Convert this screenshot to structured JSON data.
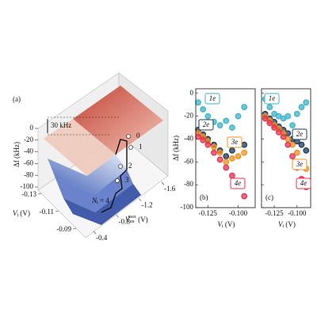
{
  "chart_data": [
    {
      "type": "surface3d",
      "panel_label": "(a)",
      "zlabel": "Δf (kHz)",
      "zticks": [
        0,
        -20,
        -40,
        -60,
        -80,
        -100
      ],
      "xlabel": {
        "symbol": "V",
        "sub": "t",
        "unit": " (V)"
      },
      "xticks": [
        -0.13,
        -0.11,
        -0.09
      ],
      "ylabel": {
        "symbol": "V",
        "sub": "un",
        "sup": "max",
        "unit": " (V)"
      },
      "yticks": [
        -0.4,
        -0.8,
        -1.2,
        -1.6
      ],
      "annotations": {
        "scale_bar": "30 kHz",
        "steps": [
          "0",
          "1",
          "2",
          "3"
        ],
        "last_step": {
          "symbol": "N",
          "sub": "t",
          "text": " = 4"
        }
      }
    },
    {
      "type": "scatter",
      "panel_label": "(b)",
      "ylabel": "Δf (kHz)",
      "show_ytick_labels": true,
      "xlabel": {
        "symbol": "V",
        "sub": "t",
        "unit": " (V)"
      },
      "xlim": [
        -0.135,
        -0.086
      ],
      "xticks": [
        -0.125,
        {
          "value": -0.1,
          "label": "-0.100"
        }
      ],
      "ylim": [
        -100,
        4
      ],
      "yticks": [
        0,
        -20,
        -40,
        -60,
        -80,
        -100
      ],
      "x": [
        -0.133,
        -0.129,
        -0.125,
        -0.12,
        -0.115,
        -0.11,
        -0.105,
        -0.1,
        -0.095
      ],
      "series": [
        {
          "name": "1e",
          "color": "#3bb3c8",
          "values": [
            -8,
            -14,
            -20,
            -25,
            -28,
            -24,
            -30,
            -20,
            -12
          ]
        },
        {
          "name": "2e",
          "color": "#1d3a5a",
          "values": [
            -32,
            -36,
            -40,
            -45,
            -50,
            -55,
            -50,
            -45,
            -45
          ]
        },
        {
          "name": "3e",
          "color": "#f0921e",
          "values": [
            -35,
            -38,
            -42,
            -47,
            -52,
            -60,
            -57,
            -55,
            -52
          ]
        },
        {
          "name": "4e",
          "color": "#e8304e",
          "values": [
            -38,
            -41,
            -45,
            -52,
            -58,
            -65,
            -72,
            -80,
            -90
          ]
        }
      ]
    },
    {
      "type": "scatter",
      "panel_label": "(c)",
      "show_ytick_labels": false,
      "xlabel": {
        "symbol": "V",
        "sub": "t",
        "unit": " (V)"
      },
      "xlim": [
        -0.139,
        -0.085
      ],
      "xticks": [
        -0.125,
        {
          "value": -0.1,
          "label": "-0.100"
        }
      ],
      "ylim": [
        -100,
        4
      ],
      "yticks": [
        0,
        -20,
        -40,
        -60,
        -80,
        -100
      ],
      "x": [
        -0.135,
        -0.13,
        -0.125,
        -0.12,
        -0.115,
        -0.11,
        -0.105,
        -0.1,
        -0.095,
        -0.09
      ],
      "series": [
        {
          "name": "1e",
          "color": "#3bb3c8",
          "values": [
            -5,
            -12,
            -18,
            -20,
            -22,
            -20,
            -28,
            -18,
            -12,
            -8
          ]
        },
        {
          "name": "2e",
          "color": "#1d3a5a",
          "values": [
            -18,
            -22,
            -25,
            -29,
            -32,
            -35,
            -40,
            -42,
            -45,
            -50
          ]
        },
        {
          "name": "3e",
          "color": "#f0921e",
          "values": [
            -20,
            -24,
            -28,
            -31,
            -35,
            -40,
            -45,
            -52,
            -60,
            -66
          ]
        },
        {
          "name": "4e",
          "color": "#e8304e",
          "values": [
            -22,
            -26,
            -30,
            -34,
            -38,
            -45,
            -55,
            -65,
            -75,
            -82
          ]
        }
      ]
    }
  ]
}
